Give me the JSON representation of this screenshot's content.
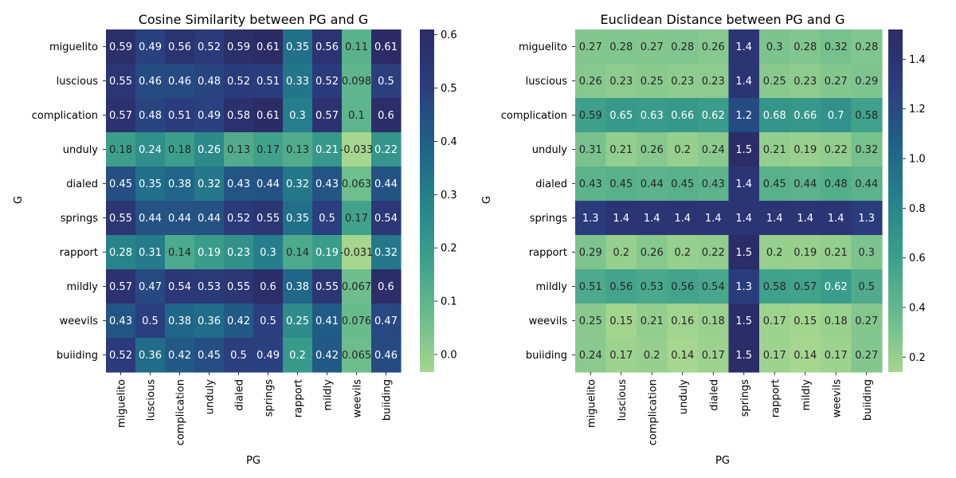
{
  "chart_data": [
    {
      "type": "heatmap",
      "title": "Cosine Similarity between PG and G",
      "xlabel": "PG",
      "ylabel": "G",
      "x_categories": [
        "miguelito",
        "luscious",
        "complication",
        "unduly",
        "dialed",
        "springs",
        "rapport",
        "mildly",
        "weevils",
        "buiiding"
      ],
      "y_categories": [
        "miguelito",
        "luscious",
        "complication",
        "unduly",
        "dialed",
        "springs",
        "rapport",
        "mildly",
        "weevils",
        "buiiding"
      ],
      "values": [
        [
          0.59,
          0.49,
          0.56,
          0.52,
          0.59,
          0.61,
          0.35,
          0.56,
          0.11,
          0.61
        ],
        [
          0.55,
          0.46,
          0.46,
          0.48,
          0.52,
          0.51,
          0.33,
          0.52,
          0.098,
          0.5
        ],
        [
          0.57,
          0.48,
          0.51,
          0.49,
          0.58,
          0.61,
          0.3,
          0.57,
          0.1,
          0.6
        ],
        [
          0.18,
          0.24,
          0.18,
          0.26,
          0.13,
          0.17,
          0.13,
          0.21,
          -0.033,
          0.22
        ],
        [
          0.45,
          0.35,
          0.38,
          0.32,
          0.43,
          0.44,
          0.32,
          0.43,
          0.063,
          0.44
        ],
        [
          0.55,
          0.44,
          0.44,
          0.44,
          0.52,
          0.55,
          0.35,
          0.5,
          0.17,
          0.54
        ],
        [
          0.28,
          0.31,
          0.14,
          0.19,
          0.23,
          0.3,
          0.14,
          0.19,
          -0.031,
          0.32
        ],
        [
          0.57,
          0.47,
          0.54,
          0.53,
          0.55,
          0.6,
          0.38,
          0.55,
          0.067,
          0.6
        ],
        [
          0.43,
          0.5,
          0.38,
          0.36,
          0.42,
          0.5,
          0.25,
          0.41,
          0.076,
          0.47
        ],
        [
          0.52,
          0.36,
          0.42,
          0.45,
          0.5,
          0.49,
          0.2,
          0.42,
          0.065,
          0.46
        ]
      ],
      "labels": [
        [
          "0.59",
          "0.49",
          "0.56",
          "0.52",
          "0.59",
          "0.61",
          "0.35",
          "0.56",
          "0.11",
          "0.61"
        ],
        [
          "0.55",
          "0.46",
          "0.46",
          "0.48",
          "0.52",
          "0.51",
          "0.33",
          "0.52",
          "0.098",
          "0.5"
        ],
        [
          "0.57",
          "0.48",
          "0.51",
          "0.49",
          "0.58",
          "0.61",
          "0.3",
          "0.57",
          "0.1",
          "0.6"
        ],
        [
          "0.18",
          "0.24",
          "0.18",
          "0.26",
          "0.13",
          "0.17",
          "0.13",
          "0.21",
          "-0.033",
          "0.22"
        ],
        [
          "0.45",
          "0.35",
          "0.38",
          "0.32",
          "0.43",
          "0.44",
          "0.32",
          "0.43",
          "0.063",
          "0.44"
        ],
        [
          "0.55",
          "0.44",
          "0.44",
          "0.44",
          "0.52",
          "0.55",
          "0.35",
          "0.5",
          "0.17",
          "0.54"
        ],
        [
          "0.28",
          "0.31",
          "0.14",
          "0.19",
          "0.23",
          "0.3",
          "0.14",
          "0.19",
          "-0.031",
          "0.32"
        ],
        [
          "0.57",
          "0.47",
          "0.54",
          "0.53",
          "0.55",
          "0.6",
          "0.38",
          "0.55",
          "0.067",
          "0.6"
        ],
        [
          "0.43",
          "0.5",
          "0.38",
          "0.36",
          "0.42",
          "0.5",
          "0.25",
          "0.41",
          "0.076",
          "0.47"
        ],
        [
          "0.52",
          "0.36",
          "0.42",
          "0.45",
          "0.5",
          "0.49",
          "0.2",
          "0.42",
          "0.065",
          "0.46"
        ]
      ],
      "vmin": -0.033,
      "vmax": 0.61,
      "colorbar_ticks": [
        0.0,
        0.1,
        0.2,
        0.3,
        0.4,
        0.5,
        0.6
      ],
      "colorbar_tick_labels": [
        "0.0",
        "0.1",
        "0.2",
        "0.3",
        "0.4",
        "0.5",
        "0.6"
      ],
      "colormap": "crest",
      "grid": false
    },
    {
      "type": "heatmap",
      "title": "Euclidean Distance between PG and G",
      "xlabel": "PG",
      "ylabel": "G",
      "x_categories": [
        "miguelito",
        "luscious",
        "complication",
        "unduly",
        "dialed",
        "springs",
        "rapport",
        "mildly",
        "weevils",
        "buiiding"
      ],
      "y_categories": [
        "miguelito",
        "luscious",
        "complication",
        "unduly",
        "dialed",
        "springs",
        "rapport",
        "mildly",
        "weevils",
        "buiiding"
      ],
      "values": [
        [
          0.27,
          0.28,
          0.27,
          0.28,
          0.26,
          1.4,
          0.3,
          0.28,
          0.32,
          0.28
        ],
        [
          0.26,
          0.23,
          0.25,
          0.23,
          0.23,
          1.4,
          0.25,
          0.23,
          0.27,
          0.29
        ],
        [
          0.59,
          0.65,
          0.63,
          0.66,
          0.62,
          1.2,
          0.68,
          0.66,
          0.7,
          0.58
        ],
        [
          0.31,
          0.21,
          0.26,
          0.2,
          0.24,
          1.5,
          0.21,
          0.19,
          0.22,
          0.32
        ],
        [
          0.43,
          0.45,
          0.44,
          0.45,
          0.43,
          1.4,
          0.45,
          0.44,
          0.48,
          0.44
        ],
        [
          1.3,
          1.4,
          1.4,
          1.4,
          1.4,
          1.4,
          1.4,
          1.4,
          1.4,
          1.3
        ],
        [
          0.29,
          0.2,
          0.26,
          0.2,
          0.22,
          1.5,
          0.2,
          0.19,
          0.21,
          0.3
        ],
        [
          0.51,
          0.56,
          0.53,
          0.56,
          0.54,
          1.3,
          0.58,
          0.57,
          0.62,
          0.5
        ],
        [
          0.25,
          0.15,
          0.21,
          0.16,
          0.18,
          1.5,
          0.17,
          0.15,
          0.18,
          0.27
        ],
        [
          0.24,
          0.17,
          0.2,
          0.14,
          0.17,
          1.5,
          0.17,
          0.14,
          0.17,
          0.27
        ]
      ],
      "labels": [
        [
          "0.27",
          "0.28",
          "0.27",
          "0.28",
          "0.26",
          "1.4",
          "0.3",
          "0.28",
          "0.32",
          "0.28"
        ],
        [
          "0.26",
          "0.23",
          "0.25",
          "0.23",
          "0.23",
          "1.4",
          "0.25",
          "0.23",
          "0.27",
          "0.29"
        ],
        [
          "0.59",
          "0.65",
          "0.63",
          "0.66",
          "0.62",
          "1.2",
          "0.68",
          "0.66",
          "0.7",
          "0.58"
        ],
        [
          "0.31",
          "0.21",
          "0.26",
          "0.2",
          "0.24",
          "1.5",
          "0.21",
          "0.19",
          "0.22",
          "0.32"
        ],
        [
          "0.43",
          "0.45",
          "0.44",
          "0.45",
          "0.43",
          "1.4",
          "0.45",
          "0.44",
          "0.48",
          "0.44"
        ],
        [
          "1.3",
          "1.4",
          "1.4",
          "1.4",
          "1.4",
          "1.4",
          "1.4",
          "1.4",
          "1.4",
          "1.3"
        ],
        [
          "0.29",
          "0.2",
          "0.26",
          "0.2",
          "0.22",
          "1.5",
          "0.2",
          "0.19",
          "0.21",
          "0.3"
        ],
        [
          "0.51",
          "0.56",
          "0.53",
          "0.56",
          "0.54",
          "1.3",
          "0.58",
          "0.57",
          "0.62",
          "0.5"
        ],
        [
          "0.25",
          "0.15",
          "0.21",
          "0.16",
          "0.18",
          "1.5",
          "0.17",
          "0.15",
          "0.18",
          "0.27"
        ],
        [
          "0.24",
          "0.17",
          "0.2",
          "0.14",
          "0.17",
          "1.5",
          "0.17",
          "0.14",
          "0.17",
          "0.27"
        ]
      ],
      "vmin": 0.14,
      "vmax": 1.52,
      "colorbar_ticks": [
        0.2,
        0.4,
        0.6,
        0.8,
        1.0,
        1.2,
        1.4
      ],
      "colorbar_tick_labels": [
        "0.2",
        "0.4",
        "0.6",
        "0.8",
        "1.0",
        "1.2",
        "1.4"
      ],
      "colormap": "crest",
      "grid": false
    }
  ],
  "colormap_stops": [
    "#a6d68f",
    "#69bb8d",
    "#3c9f8b",
    "#26828b",
    "#1f6187",
    "#2b3d7e",
    "#2b2c66"
  ]
}
